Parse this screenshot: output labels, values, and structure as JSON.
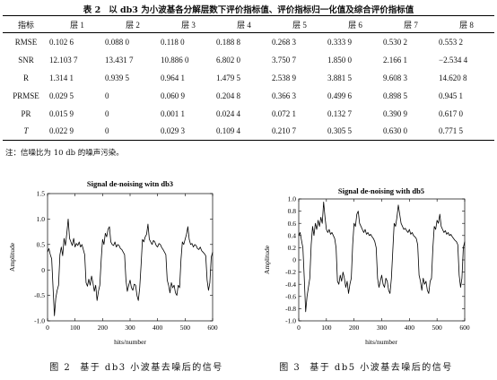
{
  "table": {
    "caption_number": "表 2",
    "caption_text": "以 db3 为小波基各分解层数下评价指标值、评价指标归一化值及综合评价指标值",
    "headers": [
      "指标",
      "层 1",
      "层 2",
      "层 3",
      "层 4",
      "层 5",
      "层 6",
      "层 7",
      "层 8"
    ],
    "rows": [
      {
        "label": "RMSE",
        "values": [
          "0.102 6",
          "0.088 0",
          "0.118 0",
          "0.188 8",
          "0.268 3",
          "0.333 9",
          "0.530 2",
          "0.553 2"
        ]
      },
      {
        "label": "SNR",
        "values": [
          "12.103 7",
          "13.431 7",
          "10.886 0",
          "6.802 0",
          "3.750 7",
          "1.850 0",
          "2.166 1",
          "−2.534 4"
        ]
      },
      {
        "label": "R",
        "values": [
          "1.314 1",
          "0.939 5",
          "0.964 1",
          "1.479 5",
          "2.538 9",
          "3.881 5",
          "9.608 3",
          "14.620 8"
        ]
      },
      {
        "label": "PRMSE",
        "values": [
          "0.029 5",
          "0",
          "0.060 9",
          "0.204 8",
          "0.366 3",
          "0.499 6",
          "0.898 5",
          "0.945 1"
        ]
      },
      {
        "label": "PR",
        "values": [
          "0.015 9",
          "0",
          "0.001 1",
          "0.024 4",
          "0.072 1",
          "0.132 7",
          "0.390 9",
          "0.617 0"
        ]
      },
      {
        "label": "T",
        "values": [
          "0.022 9",
          "0",
          "0.029 3",
          "0.109 4",
          "0.210 7",
          "0.305 5",
          "0.630 0",
          "0.771 5"
        ]
      }
    ],
    "note": "注：信噪比为 10 db 的噪声污染。"
  },
  "figures": [
    {
      "caption_number": "图 2",
      "caption_text": "基于 db3 小波基去噪后的信号"
    },
    {
      "caption_number": "图 3",
      "caption_text": "基于 db5 小波基去噪后的信号"
    }
  ],
  "chart_data": [
    {
      "type": "line",
      "title": "Signal de-noising witn db3",
      "xlabel": "hits/number",
      "ylabel": "Amplitude",
      "xlim": [
        0,
        600
      ],
      "ylim": [
        -1.0,
        1.5
      ],
      "grid": false,
      "x_ticks": [
        0,
        100,
        200,
        300,
        400,
        500,
        600
      ],
      "x_tick_labels": [
        "0",
        "100",
        "200",
        "300",
        "400",
        "500",
        "600"
      ],
      "y_ticks": [
        -1.0,
        -0.5,
        0,
        0.5,
        1.0,
        1.5
      ],
      "y_tick_labels": [
        "-1.0",
        "-0.5",
        "0",
        "0.5",
        "1.0",
        "1.5"
      ],
      "x": [
        0,
        5,
        10,
        15,
        20,
        25,
        30,
        35,
        40,
        45,
        50,
        55,
        60,
        65,
        70,
        75,
        80,
        85,
        90,
        95,
        100,
        105,
        110,
        115,
        120,
        125,
        130,
        135,
        140,
        145,
        150,
        155,
        160,
        165,
        170,
        175,
        180,
        185,
        190,
        195,
        200,
        205,
        210,
        215,
        220,
        225,
        230,
        235,
        240,
        245,
        250,
        255,
        260,
        265,
        270,
        275,
        280,
        285,
        290,
        295,
        300,
        305,
        310,
        315,
        320,
        325,
        330,
        335,
        340,
        345,
        350,
        355,
        360,
        365,
        370,
        375,
        380,
        385,
        390,
        395,
        400,
        405,
        410,
        415,
        420,
        425,
        430,
        435,
        440,
        445,
        450,
        455,
        460,
        465,
        470,
        475,
        480,
        485,
        490,
        495,
        500,
        505,
        510,
        515,
        520,
        525,
        530,
        535,
        540,
        545,
        550,
        555,
        560,
        565,
        570,
        575,
        580,
        585,
        590,
        595,
        600
      ],
      "series": [
        {
          "y": [
            0.35,
            0.42,
            0.3,
            0.22,
            -0.35,
            -0.9,
            -0.55,
            -0.4,
            -0.3,
            0.3,
            0.45,
            0.28,
            0.62,
            0.48,
            0.72,
            1.0,
            0.62,
            0.55,
            0.48,
            0.62,
            0.45,
            0.52,
            0.48,
            0.55,
            0.45,
            0.5,
            0.4,
            0.3,
            -0.25,
            -0.32,
            -0.18,
            -0.3,
            -0.12,
            -0.25,
            -0.42,
            -0.3,
            -0.6,
            -0.42,
            -0.3,
            0.2,
            0.6,
            0.5,
            0.72,
            0.65,
            0.8,
            0.85,
            0.55,
            0.5,
            0.48,
            0.55,
            0.45,
            0.5,
            0.48,
            0.42,
            0.4,
            0.35,
            0.3,
            -0.2,
            -0.42,
            -0.3,
            -0.2,
            -0.35,
            -0.4,
            -0.28,
            -0.3,
            -0.5,
            -0.6,
            -0.35,
            0.1,
            0.6,
            0.55,
            0.65,
            0.7,
            0.9,
            0.6,
            0.55,
            0.5,
            0.58,
            0.55,
            0.48,
            0.45,
            0.52,
            0.5,
            0.44,
            0.4,
            0.35,
            0.3,
            -0.2,
            -0.3,
            -0.45,
            -0.25,
            -0.35,
            -0.3,
            -0.45,
            -0.5,
            -0.3,
            -0.35,
            0.2,
            0.55,
            0.5,
            0.6,
            0.7,
            0.85,
            0.6,
            0.5,
            0.52,
            0.45,
            0.5,
            0.48,
            0.42,
            0.4,
            0.45,
            0.38,
            0.35,
            0.32,
            0.28,
            -0.2,
            -0.4,
            -0.25,
            0.25,
            0.35
          ]
        }
      ]
    },
    {
      "type": "line",
      "title": "Signal de-noising with db5",
      "xlabel": "hits/number",
      "ylabel": "Amplitude",
      "xlim": [
        0,
        600
      ],
      "ylim": [
        -1.0,
        1.0
      ],
      "grid": false,
      "x_ticks": [
        0,
        100,
        200,
        300,
        400,
        500,
        600
      ],
      "x_tick_labels": [
        "0",
        "100",
        "200",
        "300",
        "400",
        "500",
        "600"
      ],
      "y_ticks": [
        -1.0,
        -0.8,
        -0.6,
        -0.4,
        -0.2,
        0,
        0.2,
        0.4,
        0.6,
        0.8,
        1.0
      ],
      "y_tick_labels": [
        "-1.0",
        "-0.8",
        "-0.6",
        "-0.4",
        "-0.2",
        "0",
        "0.2",
        "0.4",
        "0.6",
        "0.8",
        "1.0"
      ],
      "x": [
        0,
        5,
        10,
        15,
        20,
        25,
        30,
        35,
        40,
        45,
        50,
        55,
        60,
        65,
        70,
        75,
        80,
        85,
        90,
        95,
        100,
        105,
        110,
        115,
        120,
        125,
        130,
        135,
        140,
        145,
        150,
        155,
        160,
        165,
        170,
        175,
        180,
        185,
        190,
        195,
        200,
        205,
        210,
        215,
        220,
        225,
        230,
        235,
        240,
        245,
        250,
        255,
        260,
        265,
        270,
        275,
        280,
        285,
        290,
        295,
        300,
        305,
        310,
        315,
        320,
        325,
        330,
        335,
        340,
        345,
        350,
        355,
        360,
        365,
        370,
        375,
        380,
        385,
        390,
        395,
        400,
        405,
        410,
        415,
        420,
        425,
        430,
        435,
        440,
        445,
        450,
        455,
        460,
        465,
        470,
        475,
        480,
        485,
        490,
        495,
        500,
        505,
        510,
        515,
        520,
        525,
        530,
        535,
        540,
        545,
        550,
        555,
        560,
        565,
        570,
        575,
        580,
        585,
        590,
        595,
        600
      ],
      "series": [
        {
          "y": [
            0.4,
            0.45,
            0.32,
            0.2,
            -0.3,
            -0.85,
            -0.6,
            -0.45,
            -0.3,
            0.25,
            0.55,
            0.4,
            0.6,
            0.5,
            0.65,
            0.55,
            0.7,
            0.6,
            0.95,
            0.7,
            0.5,
            0.45,
            0.5,
            0.42,
            0.45,
            0.4,
            0.35,
            0.2,
            -0.35,
            -0.4,
            -0.25,
            -0.35,
            -0.2,
            -0.3,
            -0.45,
            -0.35,
            -0.55,
            -0.4,
            -0.3,
            0.25,
            0.6,
            0.55,
            0.75,
            0.8,
            0.6,
            0.55,
            0.5,
            0.45,
            0.5,
            0.42,
            0.45,
            0.4,
            0.42,
            0.38,
            0.35,
            0.3,
            0.2,
            -0.3,
            -0.45,
            -0.35,
            -0.25,
            -0.4,
            -0.45,
            -0.3,
            -0.35,
            -0.5,
            -0.55,
            -0.3,
            0.15,
            0.6,
            0.55,
            0.7,
            0.9,
            0.75,
            0.6,
            0.55,
            0.5,
            0.52,
            0.48,
            0.45,
            0.5,
            0.42,
            0.45,
            0.4,
            0.38,
            0.35,
            0.25,
            -0.25,
            -0.35,
            -0.5,
            -0.3,
            -0.4,
            -0.35,
            -0.5,
            -0.55,
            -0.35,
            -0.3,
            0.2,
            0.55,
            0.5,
            0.65,
            0.6,
            0.75,
            0.55,
            0.5,
            0.45,
            0.48,
            0.42,
            0.45,
            0.4,
            0.42,
            0.38,
            0.35,
            0.32,
            0.3,
            0.25,
            -0.25,
            -0.45,
            -0.3,
            0.2,
            0.3
          ]
        }
      ]
    }
  ]
}
